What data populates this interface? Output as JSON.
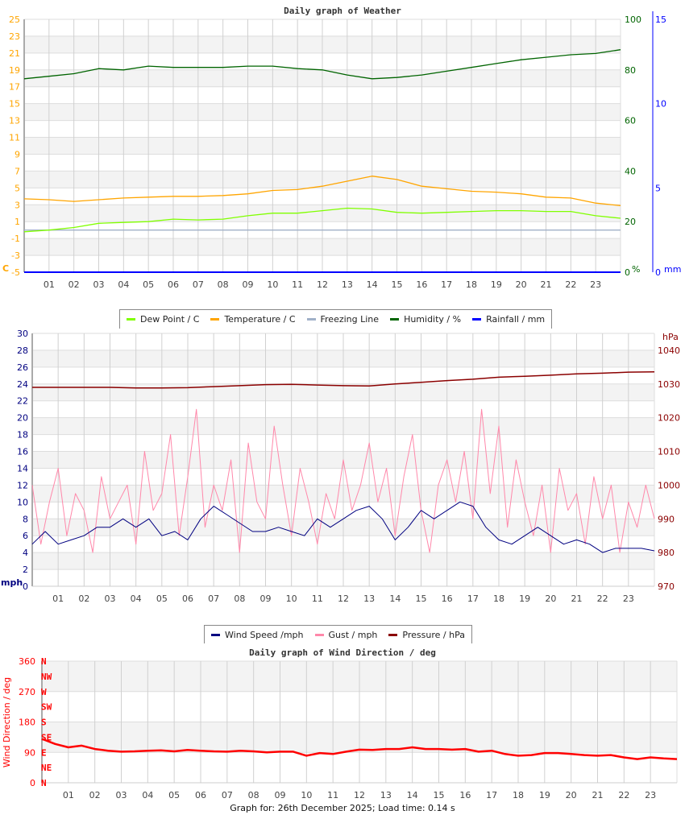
{
  "weather_chart": {
    "title": "Daily graph of Weather",
    "left_axis_label": "C",
    "humidity_axis_label": "%",
    "rain_axis_label": "mm",
    "colors": {
      "temp_axis": "#ffa500",
      "humidity": "#006400",
      "rain": "#0000ff",
      "dew": "#80ff00",
      "temp": "#ffa500",
      "freezing": "#a0b0c8"
    },
    "legend": [
      {
        "label": "Dew Point / C",
        "color": "#80ff00"
      },
      {
        "label": "Temperature / C",
        "color": "#ffa500"
      },
      {
        "label": "Freezing Line",
        "color": "#a0b0c8"
      },
      {
        "label": "Humidity / %",
        "color": "#006400"
      },
      {
        "label": "Rainfall / mm",
        "color": "#0000ff"
      }
    ]
  },
  "wind_chart": {
    "left_axis_label": "mph",
    "right_axis_label": "hPa",
    "colors": {
      "speed": "#000080",
      "gust": "#ff88aa",
      "pressure": "#8b0000"
    },
    "legend": [
      {
        "label": "Wind Speed /mph",
        "color": "#000080"
      },
      {
        "label": "Gust / mph",
        "color": "#ff88aa"
      },
      {
        "label": "Pressure / hPa",
        "color": "#8b0000"
      }
    ]
  },
  "direction_chart": {
    "title": "Daily graph of Wind Direction / deg",
    "ylabel": "Wind Direction / deg",
    "color": "#ff0000"
  },
  "chart_data": [
    {
      "type": "line",
      "title": "Daily graph of Weather",
      "x_tick_labels": [
        "01",
        "02",
        "03",
        "04",
        "05",
        "06",
        "07",
        "08",
        "09",
        "10",
        "11",
        "12",
        "13",
        "14",
        "15",
        "16",
        "17",
        "18",
        "19",
        "20",
        "21",
        "22",
        "23"
      ],
      "x_hours": [
        0,
        1,
        2,
        3,
        4,
        5,
        6,
        7,
        8,
        9,
        10,
        11,
        12,
        13,
        14,
        15,
        16,
        17,
        18,
        19,
        20,
        21,
        22,
        23,
        24
      ],
      "y_left": {
        "label": "C",
        "range": [
          -5,
          25
        ],
        "ticks": [
          "25",
          "23",
          "21",
          "19",
          "17",
          "15",
          "13",
          "11",
          "9",
          "7",
          "5",
          "3",
          "1",
          "-1",
          "-3",
          "-5"
        ]
      },
      "y_humidity": {
        "label": "%",
        "range": [
          0,
          100
        ],
        "ticks": [
          "100",
          "80",
          "60",
          "40",
          "20",
          "0"
        ]
      },
      "y_rain": {
        "label": "mm",
        "range": [
          0,
          15
        ],
        "ticks": [
          "15",
          "10",
          "5",
          "0"
        ]
      },
      "grid": true,
      "legend_position": "bottom",
      "series": [
        {
          "name": "Dew Point / C",
          "axis": "left",
          "values": [
            -0.2,
            0.0,
            0.3,
            0.8,
            0.9,
            1.0,
            1.3,
            1.2,
            1.3,
            1.7,
            2.0,
            2.0,
            2.3,
            2.6,
            2.5,
            2.1,
            2.0,
            2.1,
            2.2,
            2.3,
            2.3,
            2.2,
            2.2,
            1.7,
            1.4
          ]
        },
        {
          "name": "Temperature / C",
          "axis": "left",
          "values": [
            3.7,
            3.6,
            3.4,
            3.6,
            3.8,
            3.9,
            4.0,
            4.0,
            4.1,
            4.3,
            4.7,
            4.8,
            5.2,
            5.8,
            6.4,
            6.0,
            5.2,
            4.9,
            4.6,
            4.5,
            4.3,
            3.9,
            3.8,
            3.2,
            2.9
          ]
        },
        {
          "name": "Freezing Line",
          "axis": "left",
          "values": [
            0,
            0,
            0,
            0,
            0,
            0,
            0,
            0,
            0,
            0,
            0,
            0,
            0,
            0,
            0,
            0,
            0,
            0,
            0,
            0,
            0,
            0,
            0,
            0,
            0
          ]
        },
        {
          "name": "Humidity / %",
          "axis": "humidity",
          "values": [
            76.5,
            77.5,
            78.5,
            80.5,
            80,
            81.5,
            81,
            81,
            81,
            81.5,
            81.5,
            80.5,
            80,
            78,
            76.5,
            77,
            78,
            79.5,
            81,
            82.5,
            84,
            85,
            86,
            86.5,
            88
          ]
        },
        {
          "name": "Rainfall / mm",
          "axis": "rain",
          "values": [
            0,
            0,
            0,
            0,
            0,
            0,
            0,
            0,
            0,
            0,
            0,
            0,
            0,
            0,
            0,
            0,
            0,
            0,
            0,
            0,
            0,
            0,
            0,
            0,
            0
          ]
        }
      ]
    },
    {
      "type": "line",
      "x_tick_labels": [
        "01",
        "02",
        "03",
        "04",
        "05",
        "06",
        "07",
        "08",
        "09",
        "10",
        "11",
        "12",
        "13",
        "14",
        "15",
        "16",
        "17",
        "18",
        "19",
        "20",
        "21",
        "22",
        "23"
      ],
      "y_left": {
        "label": "mph",
        "range": [
          0,
          30
        ],
        "ticks": [
          "30",
          "28",
          "26",
          "24",
          "22",
          "20",
          "18",
          "16",
          "14",
          "12",
          "10",
          "8",
          "6",
          "4",
          "2",
          "0"
        ]
      },
      "y_right": {
        "label": "hPa",
        "range": [
          970,
          1045
        ],
        "ticks": [
          "1040",
          "1030",
          "1020",
          "1010",
          "1000",
          "990",
          "980",
          "970"
        ]
      },
      "grid": true,
      "legend_position": "bottom",
      "series": [
        {
          "name": "Wind Speed /mph",
          "axis": "left",
          "values": [
            5,
            6.5,
            5,
            5.5,
            6,
            7,
            7,
            8,
            7,
            8,
            6,
            6.5,
            5.5,
            8,
            9.5,
            8.5,
            7.5,
            6.5,
            6.5,
            7,
            6.5,
            6,
            8,
            7,
            8,
            9,
            9.5,
            8,
            5.5,
            7,
            9,
            8,
            9,
            10,
            9.5,
            7,
            5.5,
            5,
            6,
            7,
            6,
            5,
            5.5,
            5,
            4,
            4.5,
            4.5,
            4.5,
            4.2
          ]
        },
        {
          "name": "Gust / mph",
          "axis": "left",
          "values": [
            12,
            5,
            10,
            14,
            6,
            11,
            9,
            4,
            13,
            8,
            10,
            12,
            5,
            16,
            9,
            11,
            18,
            6,
            13,
            21,
            7,
            12,
            9,
            15,
            4,
            17,
            10,
            8,
            19,
            12,
            6,
            14,
            10,
            5,
            11,
            8,
            15,
            9,
            12,
            17,
            10,
            14,
            6,
            13,
            18,
            9,
            4,
            12,
            15,
            10,
            16,
            8,
            21,
            11,
            19,
            7,
            15,
            10,
            6,
            12,
            4,
            14,
            9,
            11,
            5,
            13,
            8,
            12,
            4,
            10,
            7,
            12,
            8
          ]
        },
        {
          "name": "Pressure / hPa",
          "axis": "right",
          "values": [
            1029,
            1029,
            1029,
            1029,
            1028.8,
            1028.8,
            1028.9,
            1029.2,
            1029.5,
            1029.8,
            1029.9,
            1029.7,
            1029.5,
            1029.4,
            1030,
            1030.5,
            1031,
            1031.4,
            1032,
            1032.3,
            1032.6,
            1033,
            1033.2,
            1033.5,
            1033.6
          ]
        }
      ]
    },
    {
      "type": "line",
      "title": "Daily graph of Wind Direction / deg",
      "ylabel": "Wind Direction / deg",
      "x_tick_labels": [
        "01",
        "02",
        "03",
        "04",
        "05",
        "06",
        "07",
        "08",
        "09",
        "10",
        "11",
        "12",
        "13",
        "14",
        "15",
        "16",
        "17",
        "18",
        "19",
        "20",
        "21",
        "22",
        "23"
      ],
      "y_left": {
        "range": [
          0,
          360
        ],
        "ticks": [
          "360",
          "270",
          "180",
          "90",
          "0"
        ]
      },
      "compass_labels": [
        "N",
        "NW",
        "W",
        "SW",
        "S",
        "SE",
        "E",
        "NE",
        "N"
      ],
      "grid": true,
      "series": [
        {
          "values": [
            130,
            115,
            105,
            110,
            100,
            95,
            92,
            93,
            95,
            96,
            93,
            97,
            95,
            93,
            92,
            95,
            93,
            90,
            92,
            92,
            80,
            88,
            85,
            92,
            98,
            97,
            100,
            100,
            105,
            100,
            100,
            98,
            100,
            92,
            95,
            85,
            80,
            82,
            88,
            88,
            85,
            82,
            80,
            82,
            75,
            70,
            75,
            72,
            70
          ]
        }
      ]
    }
  ],
  "footer": "Graph for: 26th December 2025; Load time: 0.14 s"
}
